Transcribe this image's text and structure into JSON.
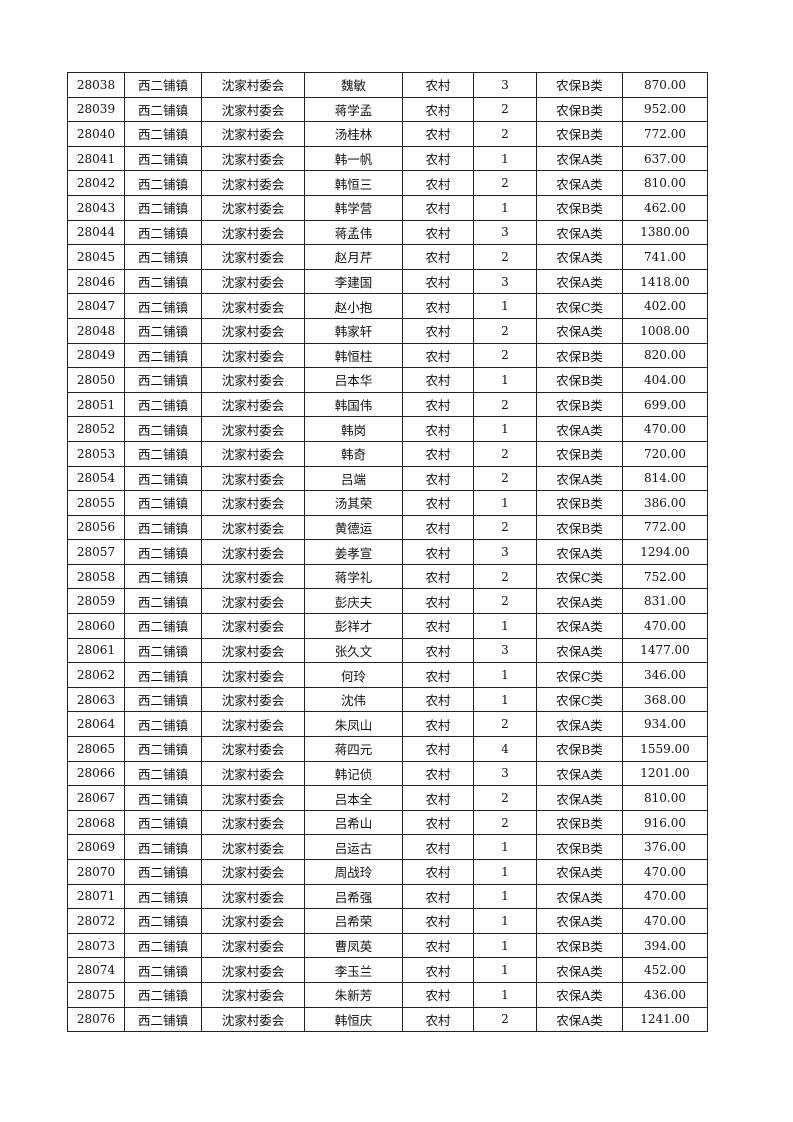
{
  "rows": [
    [
      "28038",
      "西二铺镇",
      "沈家村委会",
      "魏敏",
      "农村",
      "3",
      "农保B类",
      "870.00"
    ],
    [
      "28039",
      "西二铺镇",
      "沈家村委会",
      "蒋学孟",
      "农村",
      "2",
      "农保B类",
      "952.00"
    ],
    [
      "28040",
      "西二铺镇",
      "沈家村委会",
      "汤桂林",
      "农村",
      "2",
      "农保B类",
      "772.00"
    ],
    [
      "28041",
      "西二铺镇",
      "沈家村委会",
      "韩一帆",
      "农村",
      "1",
      "农保A类",
      "637.00"
    ],
    [
      "28042",
      "西二铺镇",
      "沈家村委会",
      "韩恒三",
      "农村",
      "2",
      "农保A类",
      "810.00"
    ],
    [
      "28043",
      "西二铺镇",
      "沈家村委会",
      "韩学营",
      "农村",
      "1",
      "农保B类",
      "462.00"
    ],
    [
      "28044",
      "西二铺镇",
      "沈家村委会",
      "蒋孟伟",
      "农村",
      "3",
      "农保A类",
      "1380.00"
    ],
    [
      "28045",
      "西二铺镇",
      "沈家村委会",
      "赵月芹",
      "农村",
      "2",
      "农保A类",
      "741.00"
    ],
    [
      "28046",
      "西二铺镇",
      "沈家村委会",
      "李建国",
      "农村",
      "3",
      "农保A类",
      "1418.00"
    ],
    [
      "28047",
      "西二铺镇",
      "沈家村委会",
      "赵小抱",
      "农村",
      "1",
      "农保C类",
      "402.00"
    ],
    [
      "28048",
      "西二铺镇",
      "沈家村委会",
      "韩家轩",
      "农村",
      "2",
      "农保A类",
      "1008.00"
    ],
    [
      "28049",
      "西二铺镇",
      "沈家村委会",
      "韩恒柱",
      "农村",
      "2",
      "农保B类",
      "820.00"
    ],
    [
      "28050",
      "西二铺镇",
      "沈家村委会",
      "吕本华",
      "农村",
      "1",
      "农保B类",
      "404.00"
    ],
    [
      "28051",
      "西二铺镇",
      "沈家村委会",
      "韩国伟",
      "农村",
      "2",
      "农保B类",
      "699.00"
    ],
    [
      "28052",
      "西二铺镇",
      "沈家村委会",
      "韩岗",
      "农村",
      "1",
      "农保A类",
      "470.00"
    ],
    [
      "28053",
      "西二铺镇",
      "沈家村委会",
      "韩奇",
      "农村",
      "2",
      "农保B类",
      "720.00"
    ],
    [
      "28054",
      "西二铺镇",
      "沈家村委会",
      "吕端",
      "农村",
      "2",
      "农保A类",
      "814.00"
    ],
    [
      "28055",
      "西二铺镇",
      "沈家村委会",
      "汤其荣",
      "农村",
      "1",
      "农保B类",
      "386.00"
    ],
    [
      "28056",
      "西二铺镇",
      "沈家村委会",
      "黄德运",
      "农村",
      "2",
      "农保B类",
      "772.00"
    ],
    [
      "28057",
      "西二铺镇",
      "沈家村委会",
      "姜孝宣",
      "农村",
      "3",
      "农保A类",
      "1294.00"
    ],
    [
      "28058",
      "西二铺镇",
      "沈家村委会",
      "蒋学礼",
      "农村",
      "2",
      "农保C类",
      "752.00"
    ],
    [
      "28059",
      "西二铺镇",
      "沈家村委会",
      "彭庆夫",
      "农村",
      "2",
      "农保A类",
      "831.00"
    ],
    [
      "28060",
      "西二铺镇",
      "沈家村委会",
      "彭祥才",
      "农村",
      "1",
      "农保A类",
      "470.00"
    ],
    [
      "28061",
      "西二铺镇",
      "沈家村委会",
      "张久文",
      "农村",
      "3",
      "农保A类",
      "1477.00"
    ],
    [
      "28062",
      "西二铺镇",
      "沈家村委会",
      "何玲",
      "农村",
      "1",
      "农保C类",
      "346.00"
    ],
    [
      "28063",
      "西二铺镇",
      "沈家村委会",
      "沈伟",
      "农村",
      "1",
      "农保C类",
      "368.00"
    ],
    [
      "28064",
      "西二铺镇",
      "沈家村委会",
      "朱凤山",
      "农村",
      "2",
      "农保A类",
      "934.00"
    ],
    [
      "28065",
      "西二铺镇",
      "沈家村委会",
      "蒋四元",
      "农村",
      "4",
      "农保B类",
      "1559.00"
    ],
    [
      "28066",
      "西二铺镇",
      "沈家村委会",
      "韩记侦",
      "农村",
      "3",
      "农保A类",
      "1201.00"
    ],
    [
      "28067",
      "西二铺镇",
      "沈家村委会",
      "吕本全",
      "农村",
      "2",
      "农保A类",
      "810.00"
    ],
    [
      "28068",
      "西二铺镇",
      "沈家村委会",
      "吕希山",
      "农村",
      "2",
      "农保B类",
      "916.00"
    ],
    [
      "28069",
      "西二铺镇",
      "沈家村委会",
      "吕运古",
      "农村",
      "1",
      "农保B类",
      "376.00"
    ],
    [
      "28070",
      "西二铺镇",
      "沈家村委会",
      "周战玲",
      "农村",
      "1",
      "农保A类",
      "470.00"
    ],
    [
      "28071",
      "西二铺镇",
      "沈家村委会",
      "吕希强",
      "农村",
      "1",
      "农保A类",
      "470.00"
    ],
    [
      "28072",
      "西二铺镇",
      "沈家村委会",
      "吕希荣",
      "农村",
      "1",
      "农保A类",
      "470.00"
    ],
    [
      "28073",
      "西二铺镇",
      "沈家村委会",
      "曹凤英",
      "农村",
      "1",
      "农保B类",
      "394.00"
    ],
    [
      "28074",
      "西二铺镇",
      "沈家村委会",
      "李玉兰",
      "农村",
      "1",
      "农保A类",
      "452.00"
    ],
    [
      "28075",
      "西二铺镇",
      "沈家村委会",
      "朱新芳",
      "农村",
      "1",
      "农保A类",
      "436.00"
    ],
    [
      "28076",
      "西二铺镇",
      "沈家村委会",
      "韩恒庆",
      "农村",
      "2",
      "农保A类",
      "1241.00"
    ]
  ]
}
